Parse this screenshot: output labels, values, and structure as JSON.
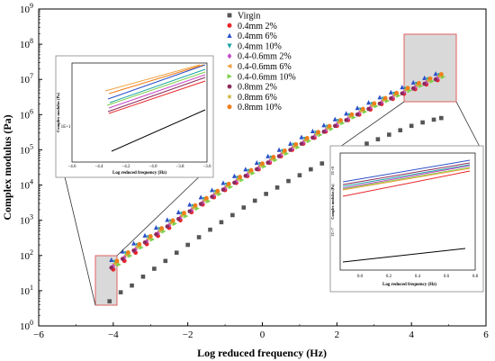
{
  "chart_data": {
    "type": "scatter",
    "title": "",
    "xlabel": "Log reduced frequency (Hz)",
    "ylabel": "Complex modulus (Pa)",
    "xlim": [
      -6,
      6
    ],
    "ylim_log10": [
      0,
      9
    ],
    "x_ticks": [
      "-6",
      "-4",
      "-2",
      "0",
      "2",
      "4",
      "6"
    ],
    "y_tick_exponents": [
      "0",
      "1",
      "2",
      "3",
      "4",
      "5",
      "6",
      "7",
      "8",
      "9"
    ],
    "y_tick_base": "10",
    "legend_position": "top-center",
    "series": [
      {
        "name": "Virgin",
        "color": "#555555",
        "marker": "square",
        "x": [
          -4.1,
          -3.8,
          -3.5,
          -3.2,
          -2.9,
          -2.6,
          -2.3,
          -2.0,
          -1.7,
          -1.4,
          -1.1,
          -0.8,
          -0.5,
          -0.2,
          0.1,
          0.4,
          0.7,
          1.0,
          1.3,
          1.6,
          1.9,
          2.2,
          2.5,
          2.8,
          3.1,
          3.4,
          3.7,
          4.0,
          4.3,
          4.6,
          4.8
        ],
        "y": [
          5,
          9,
          14,
          25,
          42,
          70,
          120,
          200,
          330,
          540,
          880,
          1400,
          2300,
          3600,
          5600,
          8500,
          13000,
          19000,
          28000,
          41000,
          58000,
          80000,
          110000,
          150000,
          200000,
          270000,
          360000,
          480000,
          600000,
          720000,
          800000
        ]
      },
      {
        "name": "0.4mm 2%",
        "color": "#e8262a",
        "marker": "circle",
        "x": [
          -4.0,
          -3.7,
          -3.4,
          -3.1,
          -2.8,
          -2.5,
          -2.2,
          -1.9,
          -1.6,
          -1.3,
          -1.0,
          -0.7,
          -0.4,
          -0.1,
          0.2,
          0.5,
          0.8,
          1.1,
          1.4,
          1.7,
          2.0,
          2.3,
          2.6,
          2.9,
          3.2,
          3.5,
          3.8,
          4.1,
          4.4,
          4.7
        ],
        "y": [
          40,
          70,
          120,
          210,
          360,
          610,
          1000,
          1700,
          2800,
          4500,
          7200,
          11500,
          18000,
          28000,
          43000,
          66000,
          100000,
          150000,
          220000,
          330000,
          480000,
          700000,
          1000000,
          1400000,
          2000000,
          2800000,
          3900000,
          5300000,
          7200000,
          9500000
        ]
      },
      {
        "name": "0.4mm 6%",
        "color": "#2b4fc8",
        "marker": "triangle-up",
        "x": [
          -4.05,
          -3.75,
          -3.45,
          -3.15,
          -2.85,
          -2.55,
          -2.25,
          -1.95,
          -1.65,
          -1.35,
          -1.05,
          -0.75,
          -0.45,
          -0.15,
          0.15,
          0.45,
          0.75,
          1.05,
          1.35,
          1.65,
          1.95,
          2.25,
          2.55,
          2.85,
          3.15,
          3.45,
          3.75,
          4.05,
          4.35,
          4.65
        ],
        "y": [
          75,
          130,
          220,
          370,
          620,
          1030,
          1700,
          2800,
          4500,
          7200,
          11500,
          18000,
          28000,
          43000,
          66000,
          100000,
          150000,
          230000,
          340000,
          500000,
          740000,
          1080000,
          1550000,
          2200000,
          3100000,
          4300000,
          6000000,
          8200000,
          11000000,
          14500000
        ]
      },
      {
        "name": "0.4mm 10%",
        "color": "#1aa3a3",
        "marker": "triangle-down",
        "x": [
          -3.95,
          -3.65,
          -3.35,
          -3.05,
          -2.75,
          -2.45,
          -2.15,
          -1.85,
          -1.55,
          -1.25,
          -0.95,
          -0.65,
          -0.35,
          -0.05,
          0.25,
          0.55,
          0.85,
          1.15,
          1.45,
          1.75,
          2.05,
          2.35,
          2.65,
          2.95,
          3.25,
          3.55,
          3.85,
          4.15,
          4.45,
          4.75
        ],
        "y": [
          65,
          115,
          195,
          330,
          560,
          930,
          1520,
          2500,
          4000,
          6400,
          10200,
          16000,
          25000,
          39000,
          60000,
          91000,
          137000,
          205000,
          305000,
          450000,
          660000,
          960000,
          1390000,
          1980000,
          2800000,
          3900000,
          5400000,
          7400000,
          10000000,
          13200000
        ]
      },
      {
        "name": "0.4-0.6mm 2%",
        "color": "#c64ac8",
        "marker": "diamond",
        "x": [
          -4.0,
          -3.7,
          -3.4,
          -3.1,
          -2.8,
          -2.5,
          -2.2,
          -1.9,
          -1.6,
          -1.3,
          -1.0,
          -0.7,
          -0.4,
          -0.1,
          0.2,
          0.5,
          0.8,
          1.1,
          1.4,
          1.7,
          2.0,
          2.3,
          2.6,
          2.9,
          3.2,
          3.5,
          3.8,
          4.1,
          4.4,
          4.7
        ],
        "y": [
          50,
          88,
          150,
          255,
          430,
          720,
          1180,
          1950,
          3150,
          5050,
          8050,
          12700,
          19800,
          30600,
          47000,
          71500,
          108000,
          162000,
          241000,
          356000,
          522000,
          760000,
          1100000,
          1570000,
          2230000,
          3130000,
          4360000,
          6000000,
          8150000,
          10800000
        ]
      },
      {
        "name": "0.4-0.6mm 6%",
        "color": "#f0a040",
        "marker": "triangle-left",
        "x": [
          -3.9,
          -3.6,
          -3.3,
          -3.0,
          -2.7,
          -2.4,
          -2.1,
          -1.8,
          -1.5,
          -1.2,
          -0.9,
          -0.6,
          -0.3,
          0.0,
          0.3,
          0.6,
          0.9,
          1.2,
          1.5,
          1.8,
          2.1,
          2.4,
          2.7,
          3.0,
          3.3,
          3.6,
          3.9,
          4.2,
          4.5,
          4.8
        ],
        "y": [
          60,
          105,
          180,
          305,
          515,
          860,
          1410,
          2320,
          3740,
          5980,
          9500,
          15000,
          23400,
          36200,
          55500,
          84500,
          128000,
          192000,
          286000,
          424000,
          622000,
          906000,
          1310000,
          1880000,
          2660000,
          3730000,
          5180000,
          7100000,
          9600000,
          12700000
        ]
      },
      {
        "name": "0.4-0.6mm 10%",
        "color": "#7bd14a",
        "marker": "triangle-right",
        "x": [
          -3.85,
          -3.55,
          -3.25,
          -2.95,
          -2.65,
          -2.35,
          -2.05,
          -1.75,
          -1.45,
          -1.15,
          -0.85,
          -0.55,
          -0.25,
          0.05,
          0.35,
          0.65,
          0.95,
          1.25,
          1.55,
          1.85,
          2.15,
          2.45,
          2.75,
          3.05,
          3.35,
          3.65,
          3.95,
          4.25,
          4.55,
          4.85
        ],
        "y": [
          55,
          98,
          168,
          285,
          480,
          800,
          1310,
          2150,
          3470,
          5550,
          8820,
          13900,
          21700,
          33600,
          51500,
          78300,
          118000,
          178000,
          265000,
          392000,
          575000,
          838000,
          1210000,
          1740000,
          2460000,
          3450000,
          4790000,
          6560000,
          8880000,
          11800000
        ]
      },
      {
        "name": "0.8mm 2%",
        "color": "#8b2b5a",
        "marker": "hexagon",
        "x": [
          -4.05,
          -3.75,
          -3.45,
          -3.15,
          -2.85,
          -2.55,
          -2.25,
          -1.95,
          -1.65,
          -1.35,
          -1.05,
          -0.75,
          -0.45,
          -0.15,
          0.15,
          0.45,
          0.75,
          1.05,
          1.35,
          1.65,
          1.95,
          2.25,
          2.55,
          2.85,
          3.15,
          3.45,
          3.75,
          4.05,
          4.35,
          4.65
        ],
        "y": [
          45,
          80,
          138,
          235,
          398,
          665,
          1090,
          1800,
          2910,
          4660,
          7420,
          11700,
          18300,
          28300,
          43400,
          66000,
          99600,
          149000,
          222000,
          328000,
          481000,
          700000,
          1010000,
          1450000,
          2060000,
          2890000,
          4020000,
          5530000,
          7510000,
          10000000
        ]
      },
      {
        "name": "0.8mm 6%",
        "color": "#c9b23a",
        "marker": "star",
        "x": [
          -3.95,
          -3.65,
          -3.35,
          -3.05,
          -2.75,
          -2.45,
          -2.15,
          -1.85,
          -1.55,
          -1.25,
          -0.95,
          -0.65,
          -0.35,
          -0.05,
          0.25,
          0.55,
          0.85,
          1.15,
          1.45,
          1.75,
          2.05,
          2.35,
          2.65,
          2.95,
          3.25,
          3.55,
          3.85,
          4.15,
          4.45,
          4.75
        ],
        "y": [
          58,
          102,
          175,
          297,
          500,
          835,
          1370,
          2250,
          3630,
          5810,
          9240,
          14600,
          22700,
          35200,
          54000,
          82100,
          124000,
          186000,
          278000,
          411000,
          603000,
          878000,
          1270000,
          1820000,
          2580000,
          3620000,
          5020000,
          6880000,
          9310000,
          12300000
        ]
      },
      {
        "name": "0.8mm 10%",
        "color": "#f07f1a",
        "marker": "circle",
        "x": [
          -3.9,
          -3.6,
          -3.3,
          -3.0,
          -2.7,
          -2.4,
          -2.1,
          -1.8,
          -1.5,
          -1.2,
          -0.9,
          -0.6,
          -0.3,
          0.0,
          0.3,
          0.6,
          0.9,
          1.2,
          1.5,
          1.8,
          2.1,
          2.4,
          2.7,
          3.0,
          3.3,
          3.6,
          3.9,
          4.2,
          4.5,
          4.8
        ],
        "y": [
          70,
          122,
          208,
          352,
          592,
          985,
          1610,
          2640,
          4250,
          6790,
          10800,
          17000,
          26400,
          40800,
          62500,
          95000,
          143000,
          215000,
          320000,
          472000,
          692000,
          1010000,
          1450000,
          2080000,
          2940000,
          4120000,
          5710000,
          7830000,
          10600000,
          14000000
        ]
      }
    ],
    "insets": [
      {
        "name": "inset-low",
        "xlabel": "Log reduced frequency (Hz)",
        "ylabel": "Complex modulus (Pa)",
        "x_ticks": [
          "-4.6",
          "-4.4",
          "-4.2",
          "-4.0",
          "-3.8",
          "-3.6"
        ],
        "y_tick": "1E+1",
        "xlim": [
          -4.6,
          -3.6
        ]
      },
      {
        "name": "inset-high",
        "xlabel": "Log reduced frequency (Hz)",
        "ylabel": "Complex modulus (Pa)",
        "x_ticks": [
          "0.0",
          "0.2",
          "0.4",
          "0.6",
          "0.8"
        ],
        "y_ticks": [
          "1E+8",
          "1E+7"
        ],
        "xlim": [
          -0.1,
          0.8
        ]
      }
    ]
  }
}
